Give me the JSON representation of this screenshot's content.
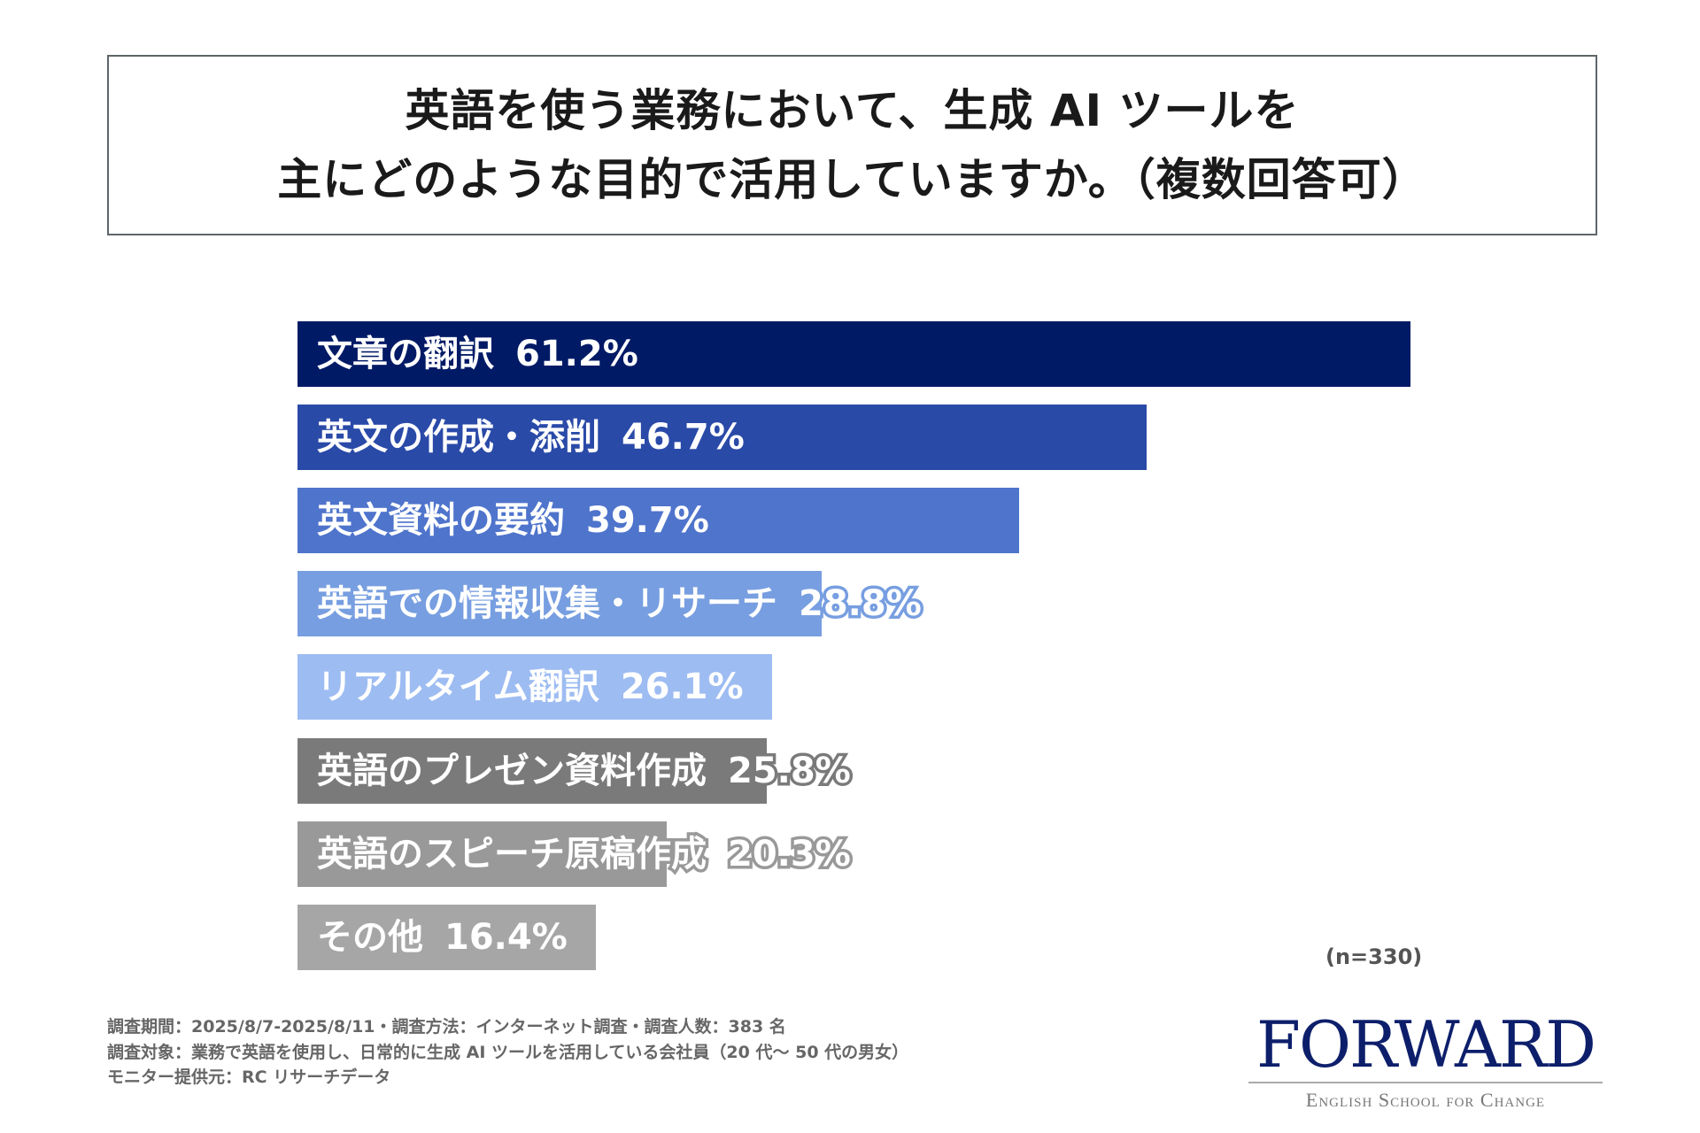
{
  "title": {
    "line1": "英語を使う業務において、生成 AI ツールを",
    "line2": "主にどのような目的で活用していますか。（複数回答可）"
  },
  "chart_data": {
    "type": "bar",
    "orientation": "horizontal",
    "xlim": [
      0,
      61.2
    ],
    "grid": false,
    "categories": [
      "文章の翻訳",
      "英文の作成・添削",
      "英文資料の要約",
      "英語での情報収集・リサーチ",
      "リアルタイム翻訳",
      "英語のプレゼン資料作成",
      "英語のスピーチ原稿作成",
      "その他"
    ],
    "values": [
      61.2,
      46.7,
      39.7,
      28.8,
      26.1,
      25.8,
      20.3,
      16.4
    ],
    "labels": [
      "61.2%",
      "46.7%",
      "39.7%",
      "28.8%",
      "26.1%",
      "25.8%",
      "20.3%",
      "16.4%"
    ],
    "colors": [
      "#001a66",
      "#2a4aa8",
      "#4f74cc",
      "#779ee0",
      "#9dbcf2",
      "#7a7a7a",
      "#999999",
      "#a6a6a6"
    ],
    "annotation": "(n=330)"
  },
  "footer": {
    "line1": "調査期間：2025/8/7-2025/8/11・調査方法：インターネット調査・調査人数：383 名",
    "line2": "調査対象：業務で英語を使用し、日常的に生成 AI ツールを活用している会社員（20 代〜 50 代の男女）",
    "line3": "モニター提供元：RC リサーチデータ"
  },
  "logo": {
    "name": "FORWARD",
    "tagline": "English School for Change"
  }
}
